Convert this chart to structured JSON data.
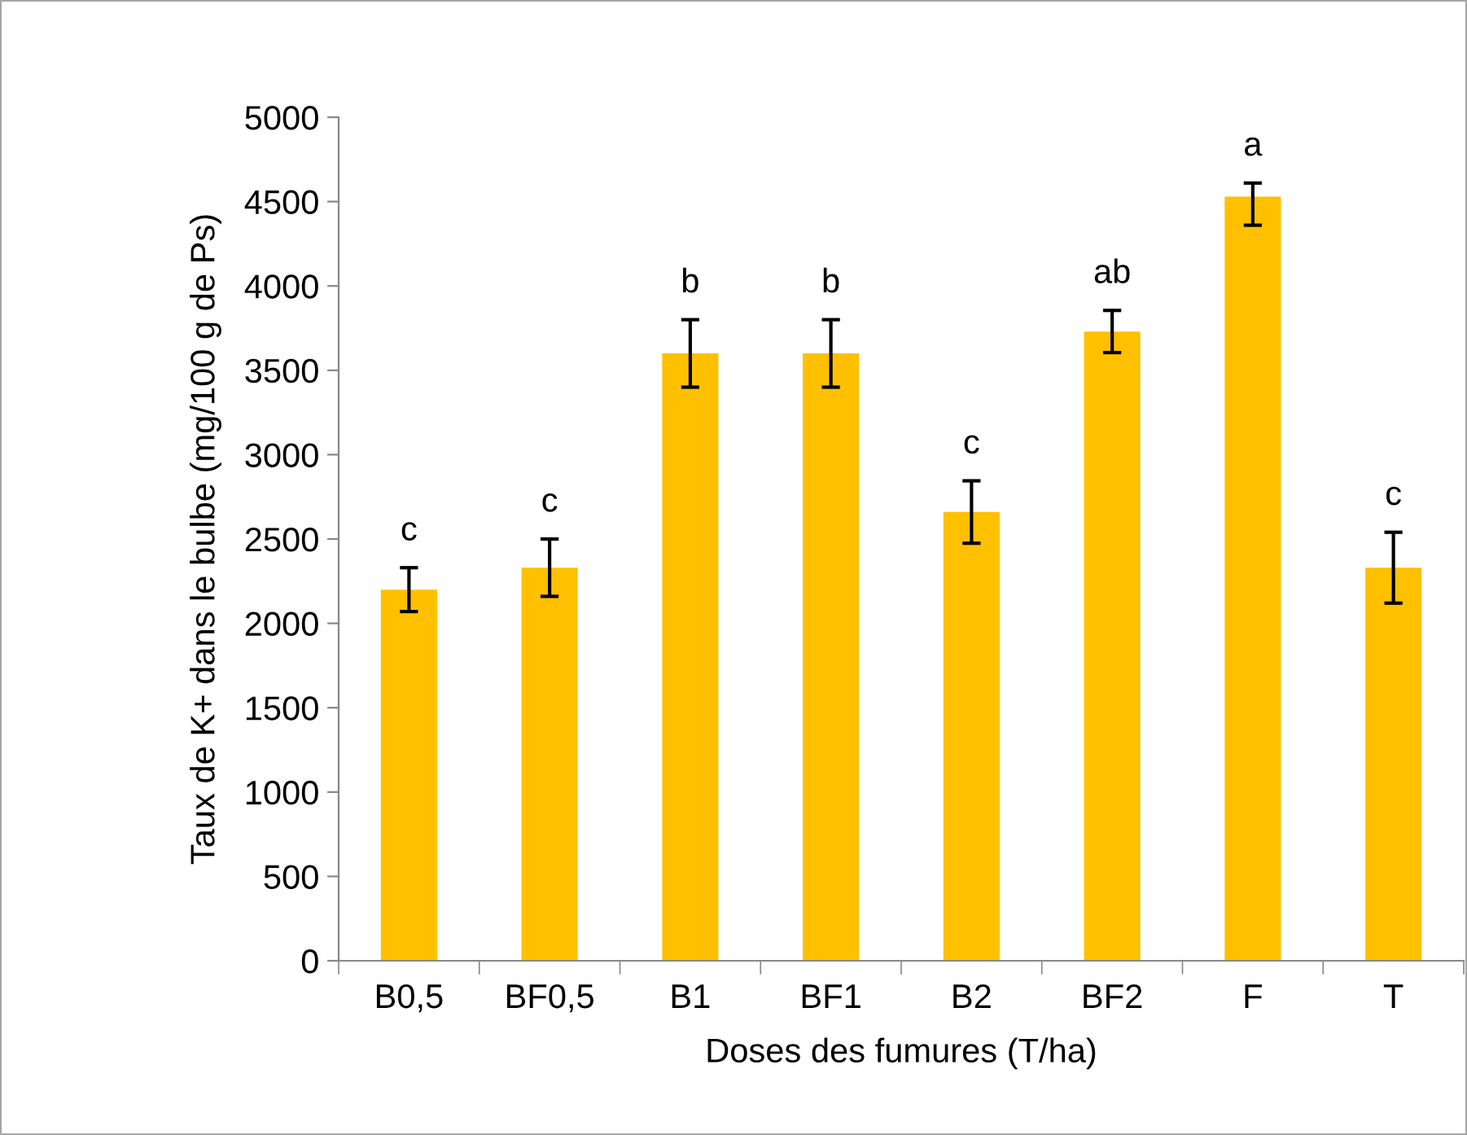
{
  "chart_data": {
    "type": "bar",
    "xlabel": "Doses des fumures (T/ha)",
    "ylabel": "Taux de K+ dans le bulbe (mg/100 g de Ps)",
    "categories": [
      "B0,5",
      "BF0,5",
      "B1",
      "BF1",
      "B2",
      "BF2",
      "F",
      "T"
    ],
    "values": [
      2200,
      2330,
      3600,
      3600,
      2660,
      3730,
      4530,
      2330
    ],
    "errors": [
      130,
      170,
      200,
      200,
      185,
      125,
      [
        4360,
        4610
      ],
      210
    ],
    "color": "#ffc000",
    "ylim": [
      0,
      5000
    ],
    "yticks": [
      0,
      500,
      1000,
      1500,
      2000,
      2500,
      3000,
      3500,
      4000,
      4500,
      5000
    ],
    "grid": false,
    "legend": false,
    "value_labels": [
      "c",
      "c",
      "b",
      "b",
      "c",
      "ab",
      "a",
      "c"
    ]
  }
}
